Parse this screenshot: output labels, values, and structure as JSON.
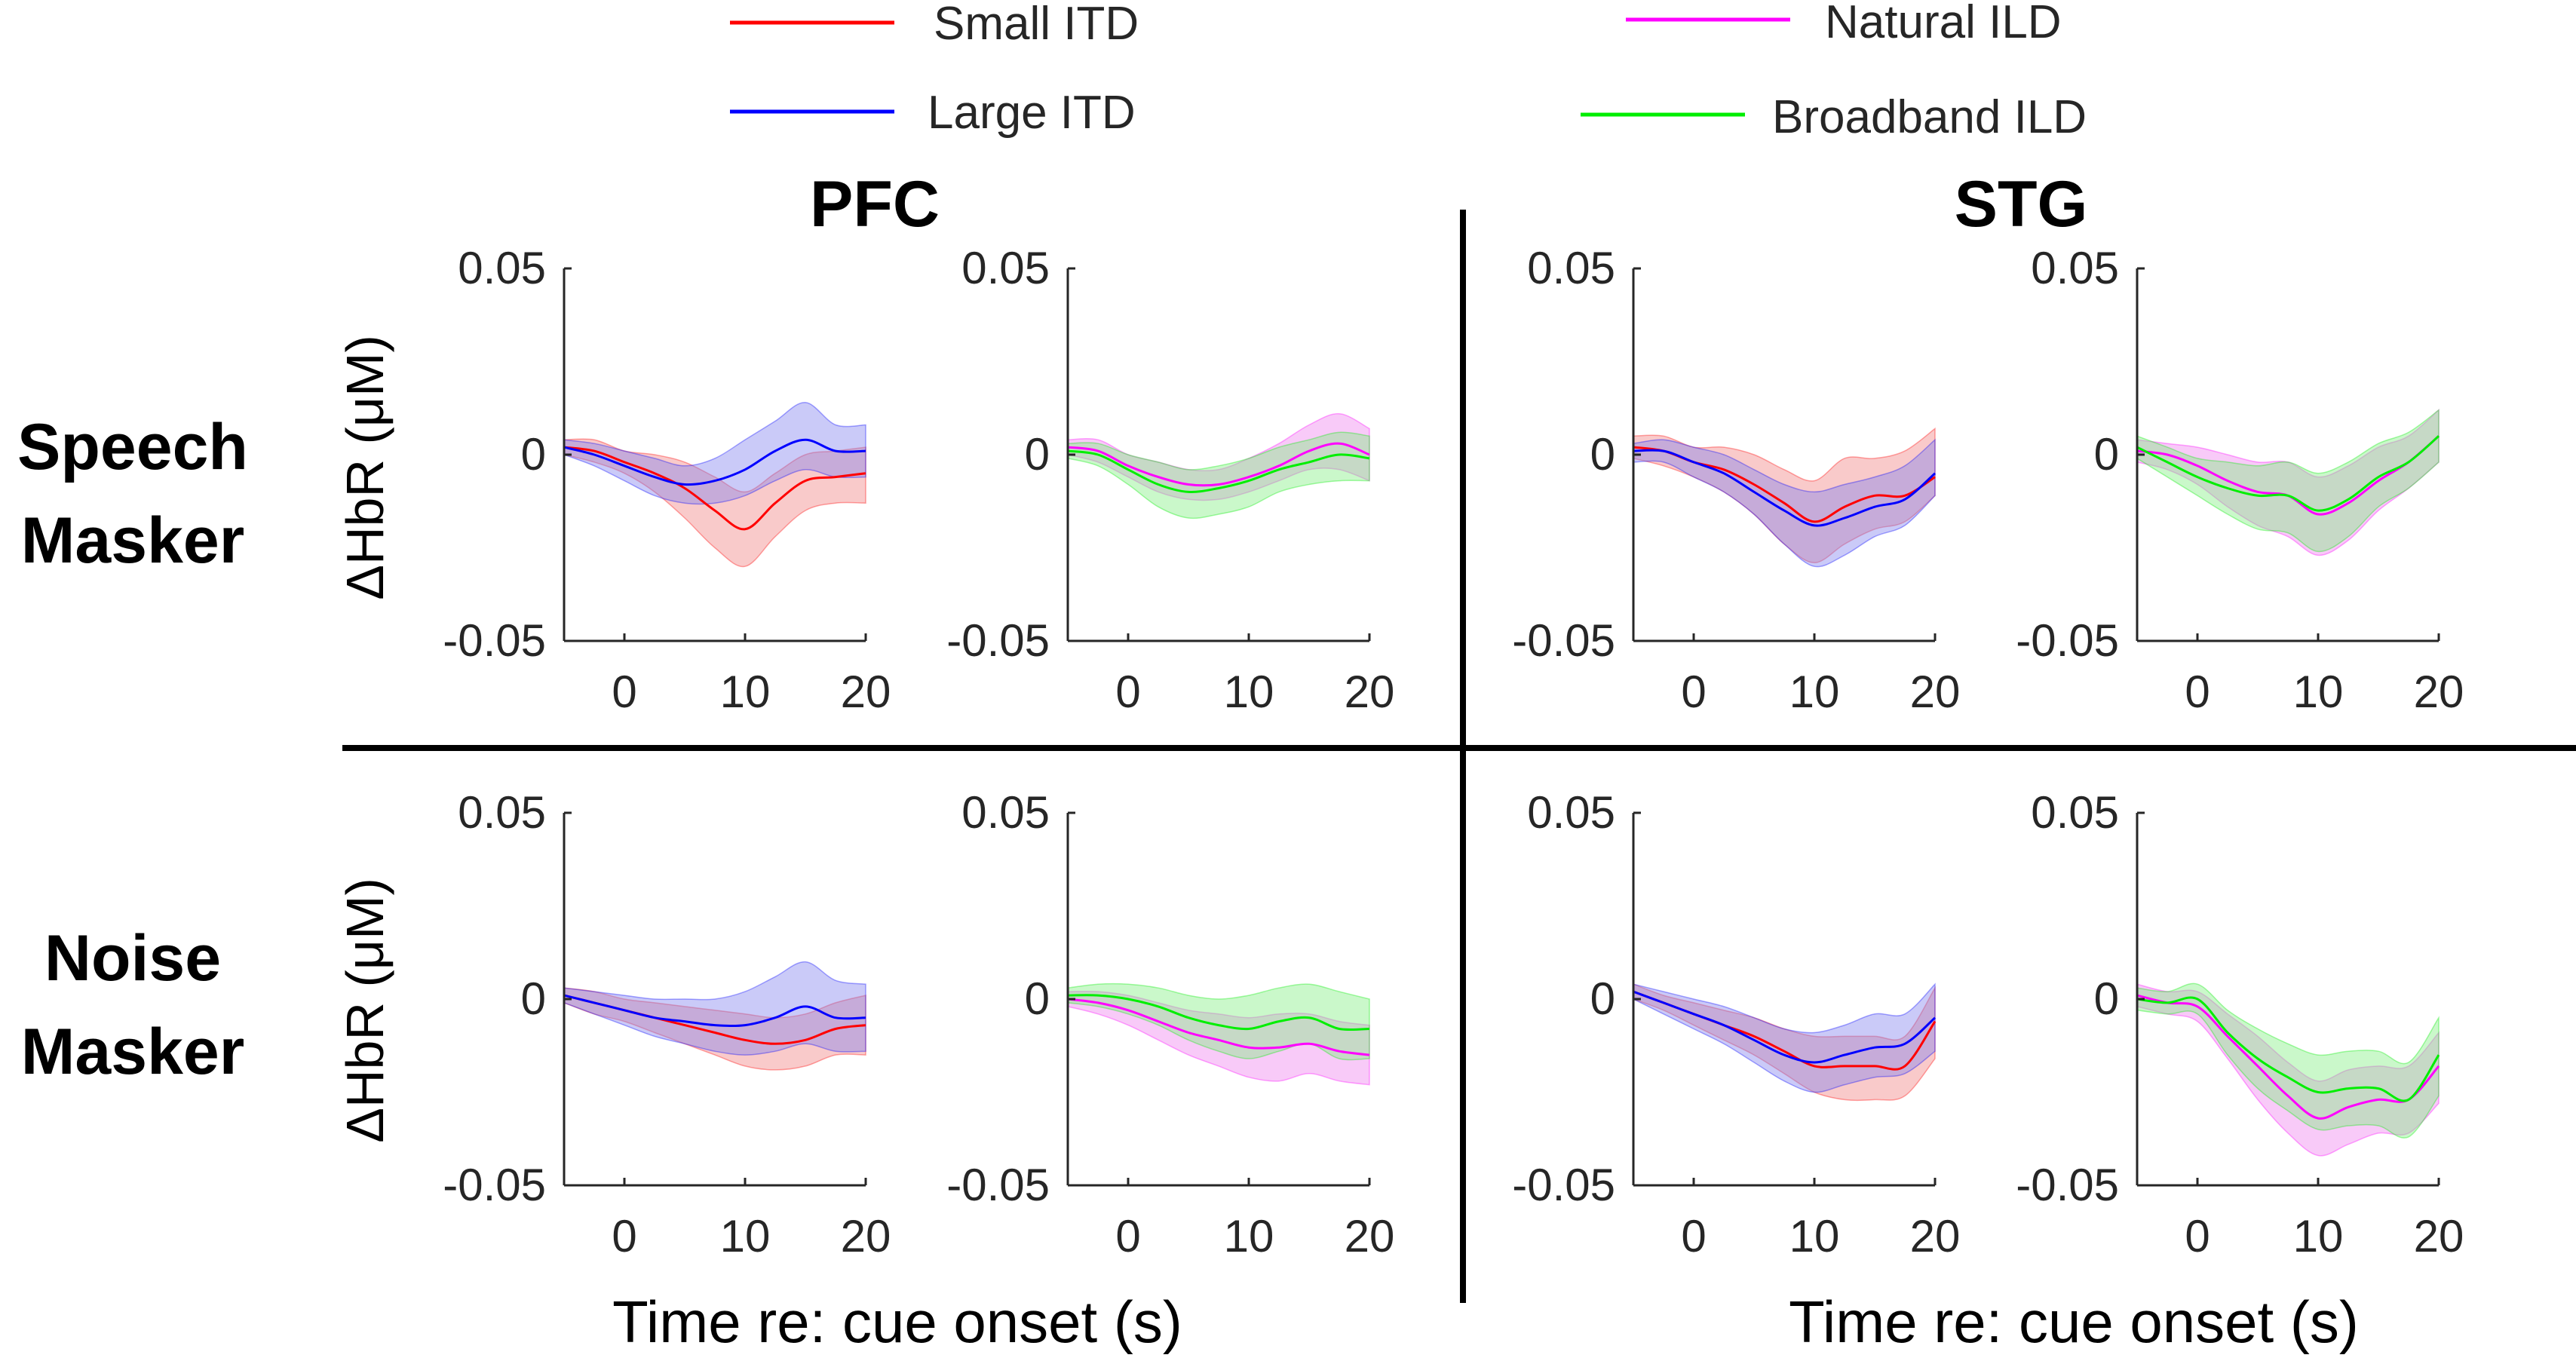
{
  "figure": {
    "legend": [
      {
        "label": "Small ITD",
        "color": "#ff0000"
      },
      {
        "label": "Large ITD",
        "color": "#0000ff"
      },
      {
        "label": "Natural ILD",
        "color": "#ff00ff"
      },
      {
        "label": "Broadband ILD",
        "color": "#00ee00"
      }
    ],
    "regions": [
      "PFC",
      "STG"
    ],
    "row_labels": [
      [
        "Speech",
        "Masker"
      ],
      [
        "Noise",
        "Masker"
      ]
    ],
    "ylabel": "ΔHbR (μM)",
    "xlabel": "Time re: cue onset (s)"
  },
  "chart_data": [
    {
      "type": "line",
      "region": "PFC",
      "row": "Speech Masker",
      "group": "ITD",
      "xlim": [
        -5,
        20
      ],
      "ylim": [
        -0.05,
        0.05
      ],
      "xticks": [
        "0",
        "10",
        "20"
      ],
      "yticks": [
        "0.05",
        "0",
        "-0.05"
      ],
      "x": [
        -5,
        -2.5,
        0,
        2.5,
        5,
        7.5,
        10,
        12.5,
        15,
        17.5,
        20
      ],
      "series": [
        {
          "name": "Small ITD",
          "color": "#ff0000",
          "band": "#f08080",
          "values": [
            0.002,
            0.001,
            -0.002,
            -0.005,
            -0.009,
            -0.015,
            -0.02,
            -0.013,
            -0.007,
            -0.006,
            -0.005
          ],
          "lower": [
            0.0,
            -0.002,
            -0.005,
            -0.01,
            -0.017,
            -0.025,
            -0.03,
            -0.022,
            -0.015,
            -0.013,
            -0.013
          ],
          "upper": [
            0.004,
            0.004,
            0.001,
            0.0,
            -0.002,
            -0.006,
            -0.01,
            -0.005,
            0.0,
            0.001,
            0.002
          ]
        },
        {
          "name": "Large ITD",
          "color": "#0000ff",
          "band": "#8080ee",
          "values": [
            0.002,
            0.0,
            -0.003,
            -0.006,
            -0.008,
            -0.007,
            -0.004,
            0.001,
            0.004,
            0.001,
            0.001
          ],
          "lower": [
            0.0,
            -0.003,
            -0.007,
            -0.011,
            -0.013,
            -0.013,
            -0.011,
            -0.007,
            -0.004,
            -0.006,
            -0.006
          ],
          "upper": [
            0.004,
            0.003,
            0.001,
            -0.001,
            -0.003,
            -0.001,
            0.004,
            0.009,
            0.014,
            0.008,
            0.008
          ]
        }
      ]
    },
    {
      "type": "line",
      "region": "PFC",
      "row": "Speech Masker",
      "group": "ILD",
      "xlim": [
        -5,
        20
      ],
      "ylim": [
        -0.05,
        0.05
      ],
      "xticks": [
        "0",
        "10",
        "20"
      ],
      "yticks": [
        "0.05",
        "0",
        "-0.05"
      ],
      "x": [
        -5,
        -2.5,
        0,
        2.5,
        5,
        7.5,
        10,
        12.5,
        15,
        17.5,
        20
      ],
      "series": [
        {
          "name": "Natural ILD",
          "color": "#ff00ff",
          "band": "#ee80ee",
          "values": [
            0.002,
            0.001,
            -0.003,
            -0.006,
            -0.008,
            -0.008,
            -0.006,
            -0.003,
            0.001,
            0.003,
            0.0
          ],
          "lower": [
            0.0,
            -0.002,
            -0.006,
            -0.01,
            -0.012,
            -0.012,
            -0.01,
            -0.007,
            -0.004,
            -0.004,
            -0.007
          ],
          "upper": [
            0.004,
            0.004,
            0.0,
            -0.002,
            -0.004,
            -0.004,
            -0.001,
            0.003,
            0.008,
            0.011,
            0.007
          ]
        },
        {
          "name": "Broadband ILD",
          "color": "#00ee00",
          "band": "#80ee80",
          "values": [
            0.001,
            0.0,
            -0.004,
            -0.008,
            -0.01,
            -0.009,
            -0.007,
            -0.004,
            -0.002,
            0.0,
            -0.001
          ],
          "lower": [
            -0.001,
            -0.003,
            -0.008,
            -0.014,
            -0.017,
            -0.016,
            -0.014,
            -0.01,
            -0.008,
            -0.007,
            -0.007
          ],
          "upper": [
            0.003,
            0.003,
            0.0,
            -0.002,
            -0.004,
            -0.003,
            -0.001,
            0.002,
            0.004,
            0.006,
            0.005
          ]
        }
      ]
    },
    {
      "type": "line",
      "region": "STG",
      "row": "Speech Masker",
      "group": "ITD",
      "xlim": [
        -5,
        20
      ],
      "ylim": [
        -0.05,
        0.05
      ],
      "xticks": [
        "0",
        "10",
        "20"
      ],
      "yticks": [
        "0.05",
        "0",
        "-0.05"
      ],
      "x": [
        -5,
        -2.5,
        0,
        2.5,
        5,
        7.5,
        10,
        12.5,
        15,
        17.5,
        20
      ],
      "series": [
        {
          "name": "Small ITD",
          "color": "#ff0000",
          "band": "#f08080",
          "values": [
            0.002,
            0.001,
            -0.002,
            -0.004,
            -0.008,
            -0.013,
            -0.018,
            -0.014,
            -0.011,
            -0.011,
            -0.006
          ],
          "lower": [
            -0.001,
            -0.003,
            -0.006,
            -0.01,
            -0.016,
            -0.024,
            -0.029,
            -0.024,
            -0.02,
            -0.018,
            -0.011
          ],
          "upper": [
            0.005,
            0.005,
            0.002,
            0.002,
            0.0,
            -0.004,
            -0.007,
            -0.001,
            -0.001,
            0.001,
            0.007
          ]
        },
        {
          "name": "Large ITD",
          "color": "#0000ff",
          "band": "#8080ee",
          "values": [
            0.001,
            0.001,
            -0.002,
            -0.005,
            -0.01,
            -0.015,
            -0.019,
            -0.017,
            -0.014,
            -0.012,
            -0.005
          ],
          "lower": [
            -0.002,
            -0.002,
            -0.006,
            -0.01,
            -0.016,
            -0.024,
            -0.03,
            -0.027,
            -0.022,
            -0.019,
            -0.011
          ],
          "upper": [
            0.003,
            0.004,
            0.002,
            0.0,
            -0.004,
            -0.008,
            -0.01,
            -0.008,
            -0.006,
            -0.003,
            0.004
          ]
        }
      ]
    },
    {
      "type": "line",
      "region": "STG",
      "row": "Speech Masker",
      "group": "ILD",
      "xlim": [
        -5,
        20
      ],
      "ylim": [
        -0.05,
        0.05
      ],
      "xticks": [
        "0",
        "10",
        "20"
      ],
      "yticks": [
        "0.05",
        "0",
        "-0.05"
      ],
      "x": [
        -5,
        -2.5,
        0,
        2.5,
        5,
        7.5,
        10,
        12.5,
        15,
        17.5,
        20
      ],
      "series": [
        {
          "name": "Natural ILD",
          "color": "#ff00ff",
          "band": "#ee80ee",
          "values": [
            0.001,
            0.0,
            -0.003,
            -0.007,
            -0.01,
            -0.011,
            -0.016,
            -0.013,
            -0.007,
            -0.002,
            0.005
          ],
          "lower": [
            -0.002,
            -0.004,
            -0.008,
            -0.014,
            -0.019,
            -0.022,
            -0.027,
            -0.023,
            -0.015,
            -0.009,
            -0.002
          ],
          "upper": [
            0.004,
            0.003,
            0.002,
            0.0,
            -0.002,
            -0.002,
            -0.006,
            -0.003,
            0.002,
            0.005,
            0.012
          ]
        },
        {
          "name": "Broadband ILD",
          "color": "#00ee00",
          "band": "#80ee80",
          "values": [
            0.002,
            -0.002,
            -0.006,
            -0.009,
            -0.011,
            -0.011,
            -0.015,
            -0.012,
            -0.006,
            -0.002,
            0.005
          ],
          "lower": [
            -0.001,
            -0.006,
            -0.011,
            -0.016,
            -0.02,
            -0.021,
            -0.026,
            -0.022,
            -0.014,
            -0.009,
            -0.002
          ],
          "upper": [
            0.005,
            0.002,
            -0.001,
            -0.002,
            -0.003,
            -0.002,
            -0.005,
            -0.002,
            0.003,
            0.006,
            0.012
          ]
        }
      ]
    },
    {
      "type": "line",
      "region": "PFC",
      "row": "Noise Masker",
      "group": "ITD",
      "xlim": [
        -5,
        20
      ],
      "ylim": [
        -0.05,
        0.05
      ],
      "xticks": [
        "0",
        "10",
        "20"
      ],
      "yticks": [
        "0.05",
        "0",
        "-0.05"
      ],
      "x": [
        -5,
        -2.5,
        0,
        2.5,
        5,
        7.5,
        10,
        12.5,
        15,
        17.5,
        20
      ],
      "series": [
        {
          "name": "Small ITD",
          "color": "#ff0000",
          "band": "#f08080",
          "values": [
            0.001,
            -0.001,
            -0.003,
            -0.005,
            -0.007,
            -0.009,
            -0.011,
            -0.012,
            -0.011,
            -0.008,
            -0.007
          ],
          "lower": [
            -0.001,
            -0.004,
            -0.006,
            -0.009,
            -0.012,
            -0.015,
            -0.018,
            -0.019,
            -0.018,
            -0.015,
            -0.015
          ],
          "upper": [
            0.003,
            0.002,
            0.0,
            -0.001,
            -0.002,
            -0.003,
            -0.004,
            -0.005,
            -0.004,
            -0.001,
            0.001
          ]
        },
        {
          "name": "Large ITD",
          "color": "#0000ff",
          "band": "#8080ee",
          "values": [
            0.001,
            -0.001,
            -0.003,
            -0.005,
            -0.006,
            -0.007,
            -0.007,
            -0.005,
            -0.002,
            -0.005,
            -0.005
          ],
          "lower": [
            -0.001,
            -0.004,
            -0.007,
            -0.01,
            -0.012,
            -0.014,
            -0.015,
            -0.014,
            -0.012,
            -0.014,
            -0.014
          ],
          "upper": [
            0.003,
            0.002,
            0.001,
            0.0,
            0.0,
            0.0,
            0.002,
            0.006,
            0.01,
            0.005,
            0.004
          ]
        }
      ]
    },
    {
      "type": "line",
      "region": "PFC",
      "row": "Noise Masker",
      "group": "ILD",
      "xlim": [
        -5,
        20
      ],
      "ylim": [
        -0.05,
        0.05
      ],
      "xticks": [
        "0",
        "10",
        "20"
      ],
      "yticks": [
        "0.05",
        "0",
        "-0.05"
      ],
      "x": [
        -5,
        -2.5,
        0,
        2.5,
        5,
        7.5,
        10,
        12.5,
        15,
        17.5,
        20
      ],
      "series": [
        {
          "name": "Natural ILD",
          "color": "#ff00ff",
          "band": "#ee80ee",
          "values": [
            0.0,
            -0.001,
            -0.003,
            -0.006,
            -0.009,
            -0.011,
            -0.013,
            -0.013,
            -0.012,
            -0.014,
            -0.015
          ],
          "lower": [
            -0.002,
            -0.004,
            -0.007,
            -0.011,
            -0.015,
            -0.018,
            -0.021,
            -0.022,
            -0.02,
            -0.022,
            -0.023
          ],
          "upper": [
            0.002,
            0.002,
            0.001,
            -0.001,
            -0.003,
            -0.004,
            -0.005,
            -0.004,
            -0.004,
            -0.006,
            -0.007
          ]
        },
        {
          "name": "Broadband ILD",
          "color": "#00ee00",
          "band": "#80ee80",
          "values": [
            0.001,
            0.001,
            0.0,
            -0.002,
            -0.005,
            -0.007,
            -0.008,
            -0.006,
            -0.005,
            -0.008,
            -0.008
          ],
          "lower": [
            -0.001,
            -0.002,
            -0.004,
            -0.007,
            -0.011,
            -0.014,
            -0.016,
            -0.014,
            -0.012,
            -0.016,
            -0.016
          ],
          "upper": [
            0.003,
            0.004,
            0.004,
            0.003,
            0.001,
            0.0,
            0.001,
            0.003,
            0.004,
            0.002,
            0.0
          ]
        }
      ]
    },
    {
      "type": "line",
      "region": "STG",
      "row": "Noise Masker",
      "group": "ITD",
      "xlim": [
        -5,
        20
      ],
      "ylim": [
        -0.05,
        0.05
      ],
      "xticks": [
        "0",
        "10",
        "20"
      ],
      "yticks": [
        "0.05",
        "0",
        "-0.05"
      ],
      "x": [
        -5,
        -2.5,
        0,
        2.5,
        5,
        7.5,
        10,
        12.5,
        15,
        17.5,
        20
      ],
      "series": [
        {
          "name": "Small ITD",
          "color": "#ff0000",
          "band": "#f08080",
          "values": [
            0.002,
            -0.001,
            -0.004,
            -0.007,
            -0.01,
            -0.014,
            -0.018,
            -0.018,
            -0.018,
            -0.018,
            -0.006
          ],
          "lower": [
            0.0,
            -0.003,
            -0.007,
            -0.011,
            -0.015,
            -0.02,
            -0.025,
            -0.027,
            -0.027,
            -0.026,
            -0.016
          ],
          "upper": [
            0.004,
            0.001,
            -0.001,
            -0.003,
            -0.005,
            -0.008,
            -0.01,
            -0.01,
            -0.01,
            -0.01,
            0.003
          ]
        },
        {
          "name": "Large ITD",
          "color": "#0000ff",
          "band": "#8080ee",
          "values": [
            0.002,
            -0.001,
            -0.004,
            -0.007,
            -0.011,
            -0.015,
            -0.017,
            -0.015,
            -0.013,
            -0.012,
            -0.005
          ],
          "lower": [
            0.0,
            -0.004,
            -0.008,
            -0.012,
            -0.017,
            -0.022,
            -0.025,
            -0.023,
            -0.021,
            -0.02,
            -0.014
          ],
          "upper": [
            0.004,
            0.002,
            0.0,
            -0.002,
            -0.005,
            -0.008,
            -0.009,
            -0.007,
            -0.004,
            -0.004,
            0.004
          ]
        }
      ]
    },
    {
      "type": "line",
      "region": "STG",
      "row": "Noise Masker",
      "group": "ILD",
      "xlim": [
        -5,
        20
      ],
      "ylim": [
        -0.05,
        0.05
      ],
      "xticks": [
        "0",
        "10",
        "20"
      ],
      "yticks": [
        "0.05",
        "0",
        "-0.05"
      ],
      "x": [
        -5,
        -2.5,
        0,
        2.5,
        5,
        7.5,
        10,
        12.5,
        15,
        17.5,
        20
      ],
      "series": [
        {
          "name": "Natural ILD",
          "color": "#ff00ff",
          "band": "#ee80ee",
          "values": [
            0.001,
            -0.001,
            -0.002,
            -0.01,
            -0.018,
            -0.026,
            -0.032,
            -0.029,
            -0.027,
            -0.027,
            -0.018
          ],
          "lower": [
            -0.002,
            -0.004,
            -0.006,
            -0.016,
            -0.027,
            -0.036,
            -0.042,
            -0.039,
            -0.036,
            -0.036,
            -0.028
          ],
          "upper": [
            0.004,
            0.002,
            0.002,
            -0.004,
            -0.01,
            -0.017,
            -0.022,
            -0.019,
            -0.018,
            -0.018,
            -0.009
          ]
        },
        {
          "name": "Broadband ILD",
          "color": "#00ee00",
          "band": "#80ee80",
          "values": [
            0.0,
            -0.001,
            0.0,
            -0.009,
            -0.016,
            -0.021,
            -0.025,
            -0.024,
            -0.024,
            -0.027,
            -0.015
          ],
          "lower": [
            -0.003,
            -0.004,
            -0.004,
            -0.015,
            -0.024,
            -0.03,
            -0.035,
            -0.034,
            -0.034,
            -0.037,
            -0.026
          ],
          "upper": [
            0.003,
            0.002,
            0.004,
            -0.003,
            -0.008,
            -0.012,
            -0.015,
            -0.014,
            -0.014,
            -0.017,
            -0.005
          ]
        }
      ]
    }
  ]
}
